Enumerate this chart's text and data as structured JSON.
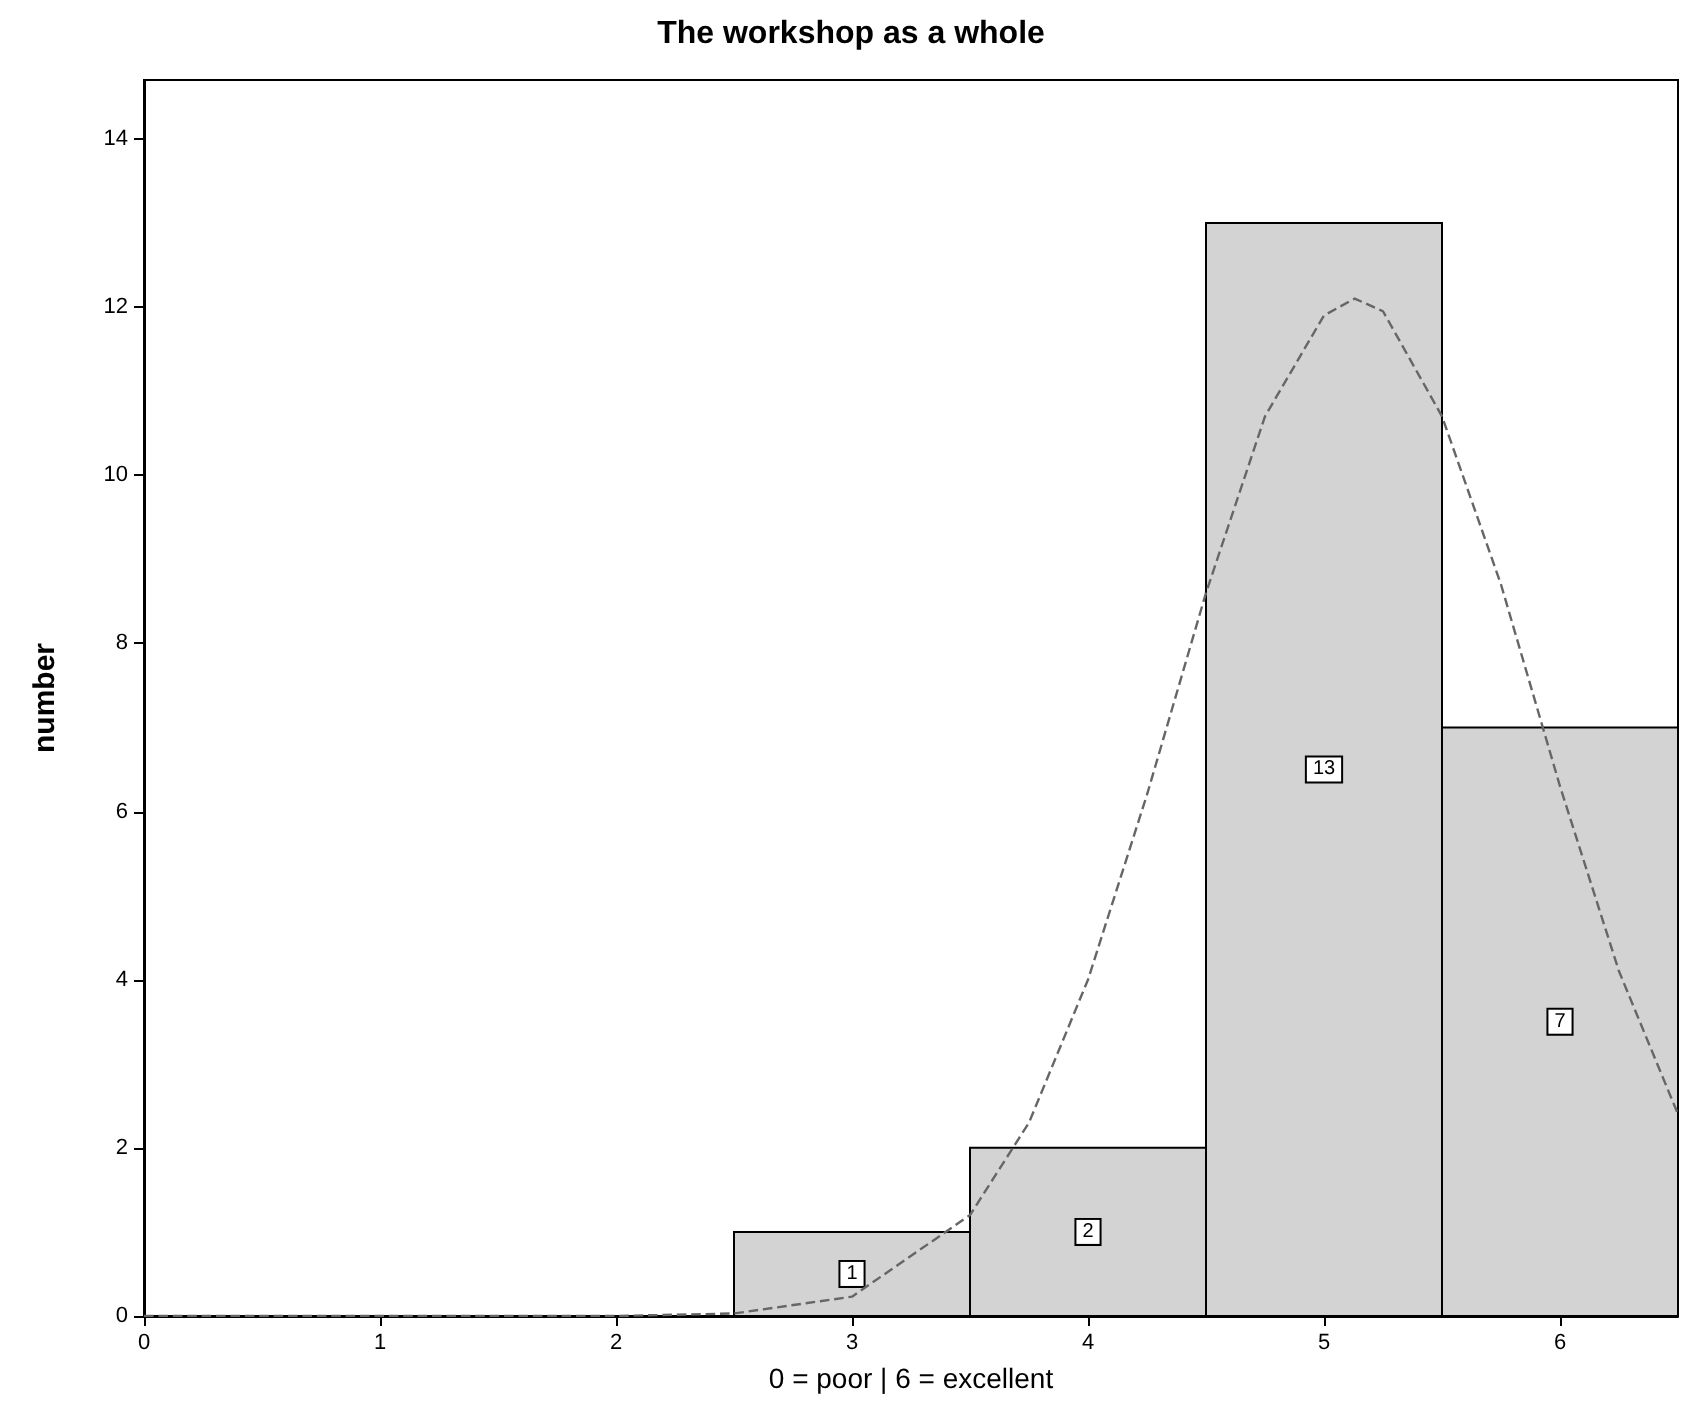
{
  "chart_data": {
    "type": "histogram",
    "title": "The workshop as a whole",
    "xlabel": "0 = poor | 6 = excellent",
    "ylabel": "number",
    "series": [
      {
        "color": "#d3d3d3",
        "bins": [
          2.5,
          3.5,
          4.5,
          5.5,
          6.5
        ],
        "values": [
          1,
          2,
          13,
          7
        ],
        "value_labels": [
          "1",
          "2",
          "13",
          "7"
        ]
      },
      {
        "type": "line",
        "color": "#666666",
        "line_style": "dashed",
        "marker": "none",
        "x": [
          0,
          1,
          2,
          2.5,
          3,
          3.5,
          3.75,
          4,
          4.25,
          4.5,
          4.75,
          5,
          5.13,
          5.25,
          5.5,
          5.75,
          6,
          6.25,
          6.5
        ],
        "values": [
          0,
          0,
          0,
          0.03,
          0.23,
          1.2,
          2.3,
          4.0,
          6.2,
          8.6,
          10.7,
          11.9,
          12.1,
          11.95,
          10.7,
          8.7,
          6.3,
          4.1,
          2.4
        ]
      }
    ],
    "grid": false,
    "xlim": [
      0,
      6.5
    ],
    "xticks": [
      0,
      1,
      2,
      3,
      4,
      5,
      6
    ],
    "ylim": [
      0,
      14.7
    ],
    "yticks": [
      0,
      2,
      4,
      6,
      8,
      10,
      12,
      14
    ]
  }
}
